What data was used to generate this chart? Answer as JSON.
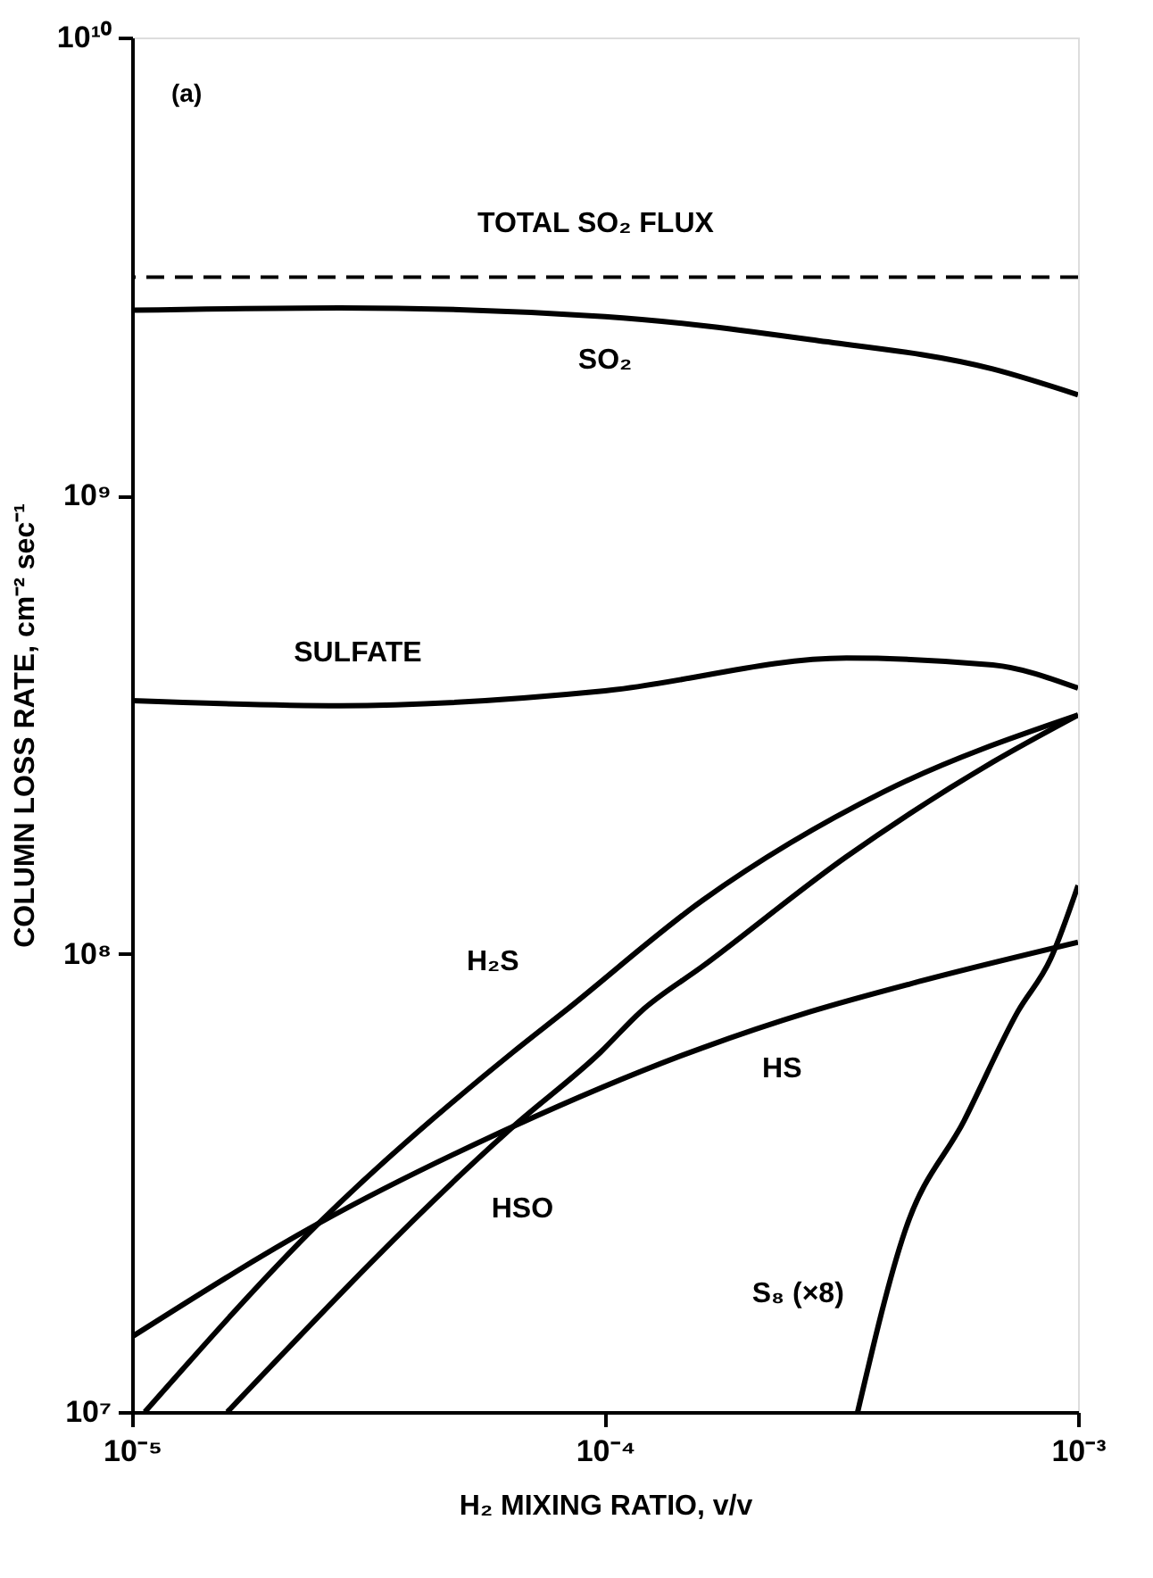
{
  "chart_data": {
    "type": "line",
    "xlabel": "H₂ MIXING RATIO, v/v",
    "ylabel": "COLUMN LOSS RATE, cm⁻² sec⁻¹",
    "log": "xy",
    "xlim": [
      1e-05,
      0.001
    ],
    "ylim": [
      10000000.0,
      10000000000.0
    ],
    "xticks": [
      {
        "value": 1e-05,
        "label": "10⁻⁵"
      },
      {
        "value": 0.0001,
        "label": "10⁻⁴"
      },
      {
        "value": 0.001,
        "label": "10⁻³"
      }
    ],
    "yticks": [
      {
        "value": 10000000.0,
        "label": "10⁷"
      },
      {
        "value": 100000000.0,
        "label": "10⁸"
      },
      {
        "value": 1000000000.0,
        "label": "10⁹"
      },
      {
        "value": 10000000000.0,
        "label": "10¹⁰"
      }
    ],
    "grid": false,
    "line_style": "solid",
    "marker": "none",
    "annotations": [
      "(a)"
    ],
    "ref_lines": [
      {
        "axis": "y",
        "value": 3000000000.0,
        "label": "TOTAL SO₂ FLUX",
        "line_style": "dashed",
        "color": "#000000"
      }
    ],
    "series": [
      {
        "name": "SO₂",
        "color": "#000000",
        "x": [
          1e-05,
          2.75e-05,
          0.0001,
          0.000272,
          0.00066,
          0.001
        ],
        "values": [
          2540000000.0,
          2570000000.0,
          2460000000.0,
          2190000000.0,
          1890000000.0,
          1660000000.0
        ]
      },
      {
        "name": "SULFATE",
        "color": "#000000",
        "x": [
          1e-05,
          2.75e-05,
          0.0001,
          0.000324,
          0.00066,
          0.001
        ],
        "values": [
          357000000.0,
          348000000.0,
          375000000.0,
          442000000.0,
          427000000.0,
          380000000.0
        ]
      },
      {
        "name": "H₂S",
        "color": "#000000",
        "x": [
          1.064e-05,
          2.48e-05,
          6.4e-05,
          8.2e-05,
          0.000161,
          0.000389,
          0.001
        ],
        "values": [
          10000000.0,
          25800000.0,
          61100000.0,
          74800000.0,
          131000000.0,
          226000000.0,
          332000000.0
        ]
      },
      {
        "name": "HS",
        "color": "#000000",
        "x": [
          1e-05,
          2.48e-05,
          6.4e-05,
          0.000161,
          0.000272,
          0.000463,
          0.001
        ],
        "values": [
          14600000.0,
          25800000.0,
          42000000.0,
          62400000.0,
          74800000.0,
          87100000.0,
          106000000.0
        ]
      },
      {
        "name": "HSO",
        "color": "#000000",
        "x": [
          1.59e-05,
          6.4e-05,
          9.8e-05,
          0.000119,
          0.000161,
          0.000324,
          0.00066,
          0.001
        ],
        "values": [
          10000000.0,
          42000000.0,
          61100000.0,
          74800000.0,
          94000000.0,
          163000000.0,
          262000000.0,
          332000000.0
        ]
      },
      {
        "name": "S₈ (×8)",
        "color": "#000000",
        "x": [
          0.000342,
          0.000431,
          0.000574,
          0.000746,
          0.000875,
          0.001
        ],
        "values": [
          10000000.0,
          24900000.0,
          43200000.0,
          74800000.0,
          97500000.0,
          141000000.0
        ]
      }
    ]
  }
}
